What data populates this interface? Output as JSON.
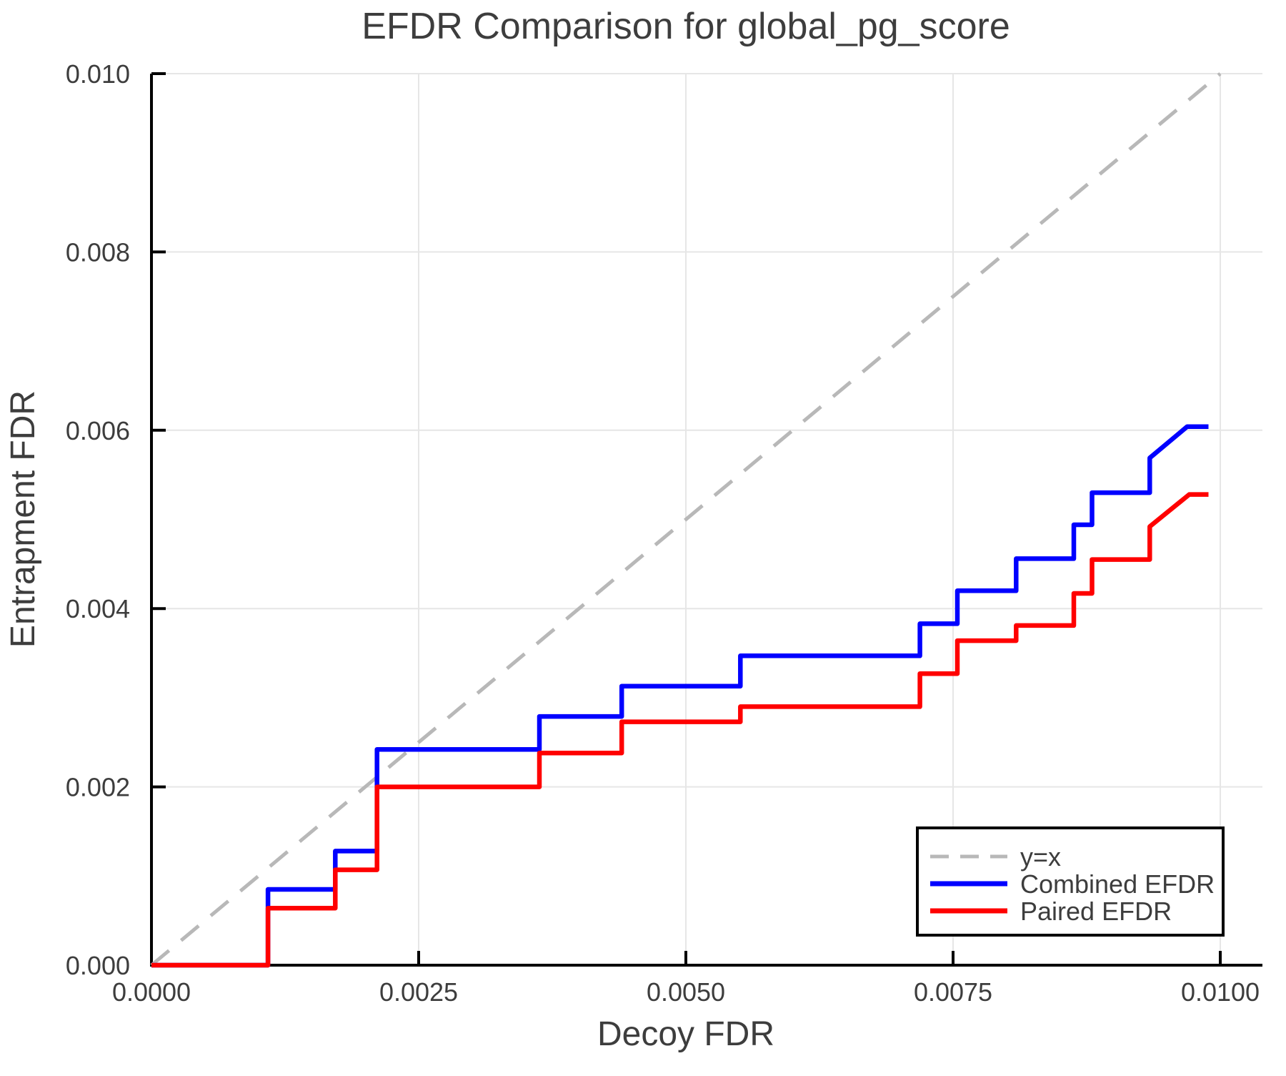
{
  "title": "EFDR Comparison for global_pg_score",
  "axes": {
    "x": {
      "label": "Decoy FDR",
      "min": 0,
      "max": 0.01,
      "ticks": [
        {
          "value": 0.0,
          "label": "0.0000"
        },
        {
          "value": 0.0025,
          "label": "0.0025"
        },
        {
          "value": 0.005,
          "label": "0.0050"
        },
        {
          "value": 0.0075,
          "label": "0.0075"
        },
        {
          "value": 0.01,
          "label": "0.0100"
        }
      ]
    },
    "y": {
      "label": "Entrapment FDR",
      "min": 0,
      "max": 0.01,
      "ticks": [
        {
          "value": 0.0,
          "label": "0.000"
        },
        {
          "value": 0.002,
          "label": "0.002"
        },
        {
          "value": 0.004,
          "label": "0.004"
        },
        {
          "value": 0.006,
          "label": "0.006"
        },
        {
          "value": 0.008,
          "label": "0.008"
        },
        {
          "value": 0.01,
          "label": "0.010"
        }
      ]
    }
  },
  "legend": {
    "entries": [
      {
        "label": "y=x",
        "color": "#b8b8b8",
        "style": "dashed"
      },
      {
        "label": "Combined EFDR",
        "color": "#0000ff",
        "style": "solid"
      },
      {
        "label": "Paired EFDR",
        "color": "#ff0000",
        "style": "solid"
      }
    ]
  },
  "colors": {
    "background": "#ffffff",
    "grid": "#e6e6e6",
    "spine": "#000000",
    "text": "#3d3d3d",
    "identity_line": "#b8b8b8",
    "combined": "#0000ff",
    "paired": "#ff0000"
  },
  "chart_data": {
    "type": "line",
    "title": "EFDR Comparison for global_pg_score",
    "xlabel": "Decoy FDR",
    "ylabel": "Entrapment FDR",
    "xlim": [
      0,
      0.01
    ],
    "ylim": [
      0,
      0.01
    ],
    "grid": true,
    "legend_position": "lower right",
    "series": [
      {
        "name": "y=x",
        "color": "#b8b8b8",
        "style": "dashed",
        "points": [
          [
            0,
            0
          ],
          [
            0.01,
            0.01
          ]
        ]
      },
      {
        "name": "Combined EFDR",
        "color": "#0000ff",
        "style": "solid",
        "points": [
          [
            0,
            0
          ],
          [
            0.00109,
            0
          ],
          [
            0.00109,
            0.00085
          ],
          [
            0.00172,
            0.00085
          ],
          [
            0.00172,
            0.00128
          ],
          [
            0.00211,
            0.00128
          ],
          [
            0.00211,
            0.00242
          ],
          [
            0.00363,
            0.00242
          ],
          [
            0.00363,
            0.00279
          ],
          [
            0.0044,
            0.00279
          ],
          [
            0.0044,
            0.00313
          ],
          [
            0.00551,
            0.00313
          ],
          [
            0.00551,
            0.00347
          ],
          [
            0.00719,
            0.00347
          ],
          [
            0.00719,
            0.00383
          ],
          [
            0.00754,
            0.00383
          ],
          [
            0.00754,
            0.0042
          ],
          [
            0.00809,
            0.0042
          ],
          [
            0.00809,
            0.00456
          ],
          [
            0.00863,
            0.00456
          ],
          [
            0.00863,
            0.00494
          ],
          [
            0.0088,
            0.00494
          ],
          [
            0.0088,
            0.0053
          ],
          [
            0.00934,
            0.0053
          ],
          [
            0.00934,
            0.00569
          ],
          [
            0.00969,
            0.00604
          ],
          [
            0.00989,
            0.00604
          ]
        ]
      },
      {
        "name": "Paired EFDR",
        "color": "#ff0000",
        "style": "solid",
        "points": [
          [
            0,
            0
          ],
          [
            0.00109,
            0
          ],
          [
            0.00109,
            0.00064
          ],
          [
            0.00172,
            0.00064
          ],
          [
            0.00172,
            0.00107
          ],
          [
            0.00211,
            0.00107
          ],
          [
            0.00211,
            0.002
          ],
          [
            0.00363,
            0.002
          ],
          [
            0.00363,
            0.00238
          ],
          [
            0.0044,
            0.00238
          ],
          [
            0.0044,
            0.00273
          ],
          [
            0.00551,
            0.00273
          ],
          [
            0.00551,
            0.0029
          ],
          [
            0.00719,
            0.0029
          ],
          [
            0.00719,
            0.00327
          ],
          [
            0.00754,
            0.00327
          ],
          [
            0.00754,
            0.00364
          ],
          [
            0.00809,
            0.00364
          ],
          [
            0.00809,
            0.00381
          ],
          [
            0.00863,
            0.00381
          ],
          [
            0.00863,
            0.00417
          ],
          [
            0.0088,
            0.00417
          ],
          [
            0.0088,
            0.00455
          ],
          [
            0.00934,
            0.00455
          ],
          [
            0.00934,
            0.00492
          ],
          [
            0.00971,
            0.00528
          ],
          [
            0.00989,
            0.00528
          ]
        ]
      }
    ]
  }
}
